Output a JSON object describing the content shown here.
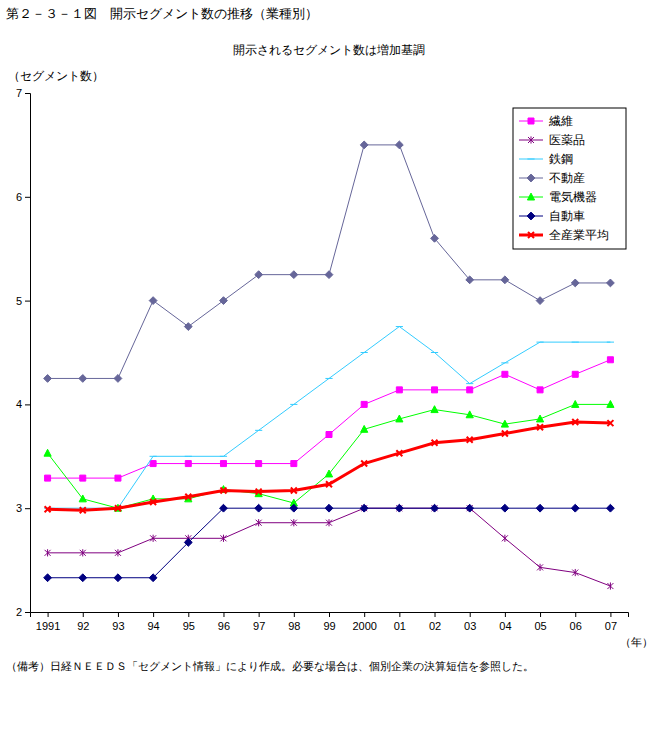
{
  "chart_data": {
    "type": "line",
    "title": "第２－３－１図　開示セグメント数の推移（業種別）",
    "subtitle": "開示されるセグメント数は増加基調",
    "y_label": "（セグメント数）",
    "x_label": "（年）",
    "note": "（備考）日経ＮＥＥＤＳ「セグメント情報」により作成。必要な場合は、個別企業の決算短信を参照した。",
    "categories": [
      "1991",
      "92",
      "93",
      "94",
      "95",
      "96",
      "97",
      "98",
      "99",
      "2000",
      "01",
      "02",
      "03",
      "04",
      "05",
      "06",
      "07"
    ],
    "ylim": [
      2,
      7
    ],
    "yticks": [
      2,
      3,
      4,
      5,
      6,
      7
    ],
    "grid": false,
    "legend": "top-right",
    "series": [
      {
        "name": "繊維",
        "color": "#ff00ff",
        "marker": "square",
        "line_style": "solid",
        "values": [
          3.29,
          3.29,
          3.29,
          3.43,
          3.43,
          3.43,
          3.43,
          3.43,
          3.71,
          4.0,
          4.14,
          4.14,
          4.14,
          4.29,
          4.14,
          4.29,
          4.43
        ]
      },
      {
        "name": "医薬品",
        "color": "#800080",
        "marker": "asterisk",
        "line_style": "solid",
        "values": [
          2.57,
          2.57,
          2.57,
          2.71,
          2.71,
          2.71,
          2.86,
          2.86,
          2.86,
          3.0,
          3.0,
          3.0,
          3.0,
          2.71,
          2.43,
          2.38,
          2.25
        ]
      },
      {
        "name": "鉄鋼",
        "color": "#33ccff",
        "marker": "dash",
        "line_style": "solid",
        "values": [
          3.0,
          3.0,
          3.0,
          3.5,
          3.5,
          3.5,
          3.75,
          4.0,
          4.25,
          4.5,
          4.75,
          4.5,
          4.2,
          4.4,
          4.6,
          4.6,
          4.6
        ]
      },
      {
        "name": "不動産",
        "color": "#666699",
        "marker": "diamond",
        "line_style": "solid",
        "values": [
          4.25,
          4.25,
          4.25,
          5.0,
          4.75,
          5.0,
          5.25,
          5.25,
          5.25,
          6.5,
          6.5,
          5.6,
          5.2,
          5.2,
          5.0,
          5.17,
          5.17
        ]
      },
      {
        "name": "電気機器",
        "color": "#00ff00",
        "marker": "triangle",
        "line_style": "solid",
        "values": [
          3.53,
          3.09,
          3.0,
          3.09,
          3.09,
          3.18,
          3.14,
          3.05,
          3.33,
          3.76,
          3.86,
          3.95,
          3.9,
          3.81,
          3.86,
          4.0,
          4.0
        ]
      },
      {
        "name": "自動車",
        "color": "#000080",
        "marker": "diamond",
        "line_style": "solid",
        "values": [
          2.33,
          2.33,
          2.33,
          2.33,
          2.67,
          3.0,
          3.0,
          3.0,
          3.0,
          3.0,
          3.0,
          3.0,
          3.0,
          3.0,
          3.0,
          3.0,
          3.0
        ]
      },
      {
        "name": "全産業平均",
        "color": "#ff0000",
        "marker": "cross",
        "line_style": "solid",
        "values": [
          2.99,
          2.98,
          3.0,
          3.06,
          3.11,
          3.17,
          3.16,
          3.17,
          3.23,
          3.43,
          3.53,
          3.63,
          3.66,
          3.72,
          3.78,
          3.83,
          3.82
        ]
      }
    ]
  }
}
